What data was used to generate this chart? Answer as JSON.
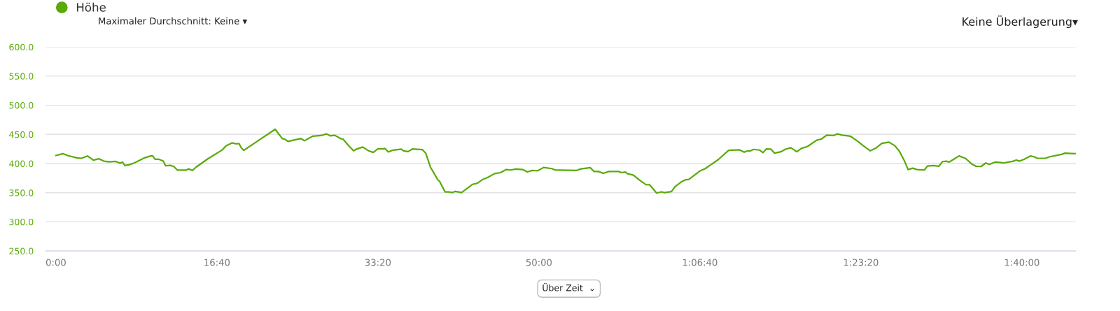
{
  "chart_data": {
    "type": "line",
    "x": [
      0,
      43,
      72,
      130,
      159,
      196,
      232,
      268,
      297,
      333,
      370,
      399,
      413,
      428,
      457,
      486,
      551,
      588,
      601,
      616,
      638,
      667,
      681,
      710,
      732,
      754,
      812,
      823,
      848,
      870,
      942,
      1029,
      1058,
      1094,
      1116,
      1138,
      1152,
      1167,
      1275,
      1362,
      1406,
      1420,
      1442,
      1493,
      1522,
      1543,
      1594,
      1645,
      1681,
      1703,
      1732,
      1768,
      1783,
      1820,
      1849,
      1870,
      1906,
      1942,
      1971,
      2000,
      2029,
      2043,
      2065,
      2087,
      2145,
      2159,
      2188,
      2214,
      2275,
      2297,
      2326,
      2348,
      2370,
      2383,
      2417,
      2441,
      2462,
      2481,
      2499,
      2519,
      2551,
      2587,
      2616,
      2652,
      2681,
      2725,
      2761,
      2797,
      2826,
      2855,
      2899,
      2928,
      2957,
      2993,
      3029,
      3080,
      3101,
      3130,
      3232,
      3261,
      3319,
      3341,
      3370,
      3399,
      3435,
      3493,
      3514,
      3536,
      3551,
      3587,
      3623,
      3664,
      3688,
      3731,
      3761,
      3780,
      3823,
      3845,
      3881,
      3910,
      3932,
      3997,
      4033,
      4113,
      4178,
      4246,
      4275,
      4296,
      4310,
      4333,
      4370,
      4391,
      4413,
      4441,
      4464,
      4507,
      4528,
      4565,
      4601,
      4630,
      4667,
      4725,
      4754,
      4788,
      4826,
      4855,
      4884,
      4935,
      4971,
      5014,
      5058,
      5094,
      5130,
      5174,
      5210,
      5239,
      5268,
      5293,
      5322,
      5348,
      5394,
      5413,
      5449,
      5483,
      5507,
      5530,
      5548,
      5572,
      5609,
      5649,
      5688,
      5715,
      5746,
      5775,
      5797,
      5833,
      5870,
      5884,
      5942,
      5965,
      5986,
      6015,
      6052,
      6074,
      6096,
      6146,
      6174,
      6246,
      6268,
      6330
    ],
    "series": [
      {
        "name": "Höhe",
        "color": "#5aaa0a",
        "values": [
          413.8,
          417.0,
          413.8,
          409.8,
          409.0,
          413.0,
          405.8,
          408.2,
          404.1,
          402.9,
          403.7,
          400.5,
          402.5,
          396.5,
          398.1,
          400.9,
          409.8,
          413.0,
          413.0,
          407.4,
          407.4,
          404.1,
          396.1,
          396.9,
          394.9,
          388.9,
          388.9,
          390.9,
          388.1,
          393.7,
          407.8,
          422.6,
          430.7,
          435.5,
          433.9,
          433.9,
          426.7,
          422.6,
          442.8,
          458.8,
          442.8,
          442.0,
          437.9,
          441.2,
          442.8,
          439.1,
          446.8,
          448.0,
          450.8,
          447.6,
          448.4,
          442.8,
          442.0,
          429.9,
          421.8,
          425.1,
          428.3,
          421.8,
          419.0,
          425.5,
          425.1,
          425.9,
          419.8,
          422.6,
          424.7,
          421.8,
          420.6,
          425.1,
          423.9,
          417.8,
          393.7,
          383.6,
          372.8,
          369.5,
          351.4,
          351.4,
          350.2,
          352.3,
          351.4,
          350.2,
          356.7,
          364.3,
          365.9,
          372.8,
          376.0,
          382.8,
          384.4,
          389.7,
          388.9,
          390.5,
          389.7,
          385.6,
          388.1,
          387.7,
          393.3,
          391.3,
          388.9,
          388.9,
          388.1,
          390.9,
          392.9,
          386.4,
          386.4,
          383.2,
          386.4,
          386.4,
          384.4,
          385.6,
          382.4,
          380.0,
          372.0,
          363.9,
          363.5,
          349.4,
          351.4,
          350.2,
          351.8,
          360.3,
          367.9,
          372.0,
          372.8,
          386.8,
          391.3,
          406.6,
          422.6,
          423.5,
          419.4,
          421.8,
          421.4,
          424.3,
          423.1,
          418.6,
          425.1,
          424.7,
          417.8,
          420.6,
          424.3,
          427.1,
          420.2,
          425.9,
          429.1,
          440.0,
          442.0,
          448.8,
          448.0,
          450.8,
          448.8,
          446.8,
          440.0,
          430.7,
          421.8,
          426.7,
          434.7,
          436.7,
          430.7,
          421.0,
          405.8,
          389.7,
          392.1,
          389.7,
          388.9,
          395.7,
          396.5,
          395.3,
          403.3,
          404.1,
          402.5,
          406.6,
          413.0,
          409.0,
          399.3,
          395.3,
          394.9,
          400.9,
          398.5,
          402.5,
          401.7,
          400.9,
          403.7,
          405.8,
          404.1,
          407.4,
          413.0,
          411.7,
          409.0,
          409.0,
          411.7,
          415.8,
          417.8,
          417.0
        ]
      }
    ],
    "xlim": [
      -65,
      6335
    ],
    "xticks": [
      {
        "value": 0,
        "label": "0:00"
      },
      {
        "value": 1000,
        "label": "16:40"
      },
      {
        "value": 2000,
        "label": "33:20"
      },
      {
        "value": 3000,
        "label": "50:00"
      },
      {
        "value": 4000,
        "label": "1:06:40"
      },
      {
        "value": 5000,
        "label": "1:23:20"
      },
      {
        "value": 6000,
        "label": "1:40:00"
      }
    ],
    "ylim": [
      250,
      600
    ],
    "yticks": [
      {
        "value": 250,
        "label": "250.0"
      },
      {
        "value": 300,
        "label": "300.0"
      },
      {
        "value": 350,
        "label": "350.0"
      },
      {
        "value": 400,
        "label": "400.0"
      },
      {
        "value": 450,
        "label": "450.0"
      },
      {
        "value": 500,
        "label": "500.0"
      },
      {
        "value": 550,
        "label": "550.0"
      },
      {
        "value": 600,
        "label": "600.0"
      }
    ],
    "grid": "y",
    "legend": "top left",
    "marker": "none",
    "line_style": "solid",
    "annotations": [
      "Maximaler Durchschnitt: Keine ▾",
      "Keine Überlagerung▾",
      "Über Zeit  ⌄"
    ]
  }
}
